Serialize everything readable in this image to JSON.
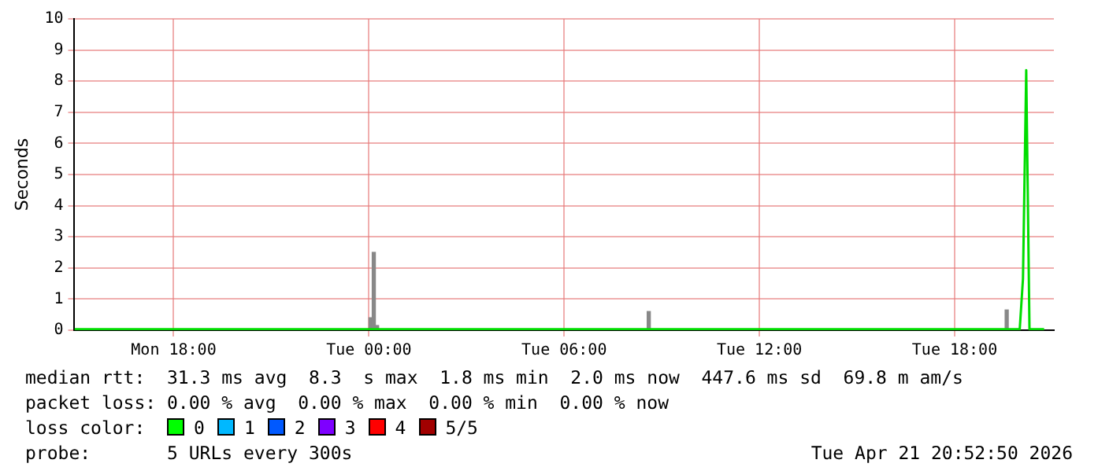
{
  "chart_data": {
    "type": "line",
    "ylabel": "Seconds",
    "xlim": [
      "2026-04-20T14:57",
      "2026-04-21T21:03"
    ],
    "xticks": [
      {
        "value": "2026-04-20T18:00",
        "label": "Mon 18:00"
      },
      {
        "value": "2026-04-21T00:00",
        "label": "Tue 00:00"
      },
      {
        "value": "2026-04-21T06:00",
        "label": "Tue 06:00"
      },
      {
        "value": "2026-04-21T12:00",
        "label": "Tue 12:00"
      },
      {
        "value": "2026-04-21T18:00",
        "label": "Tue 18:00"
      }
    ],
    "ylim": [
      0,
      10
    ],
    "yticks": [
      0,
      1,
      2,
      3,
      4,
      5,
      6,
      7,
      8,
      9,
      10
    ],
    "grid": true,
    "legend": false,
    "marker": "none",
    "series": [
      {
        "type": "bar",
        "color": "#888888",
        "x": [
          "2026-04-21T00:03",
          "2026-04-21T00:09",
          "2026-04-21T00:15",
          "2026-04-21T08:36",
          "2026-04-21T19:36"
        ],
        "values": [
          0.4,
          2.5,
          0.15,
          0.6,
          0.65
        ]
      },
      {
        "color": "#00dd00",
        "x": [
          "2026-04-20T14:57",
          "2026-04-21T20:00",
          "2026-04-21T20:06",
          "2026-04-21T20:12",
          "2026-04-21T20:18",
          "2026-04-21T20:45"
        ],
        "values": [
          0.03,
          0.03,
          1.65,
          8.35,
          0.03,
          0.03
        ]
      }
    ],
    "annotations": [
      "median rtt:  31.3 ms avg  8.3  s max  1.8 ms min  2.0 ms now  447.6 ms sd  69.8 m am/s",
      "packet loss: 0.00 % avg  0.00 % max  0.00 % min  0.00 % now",
      "loss color:",
      "0",
      "1",
      "2",
      "3",
      "4",
      "5/5",
      "probe:       5 URLs every 300s",
      "Tue Apr 21 20:52:50 2026"
    ]
  }
}
